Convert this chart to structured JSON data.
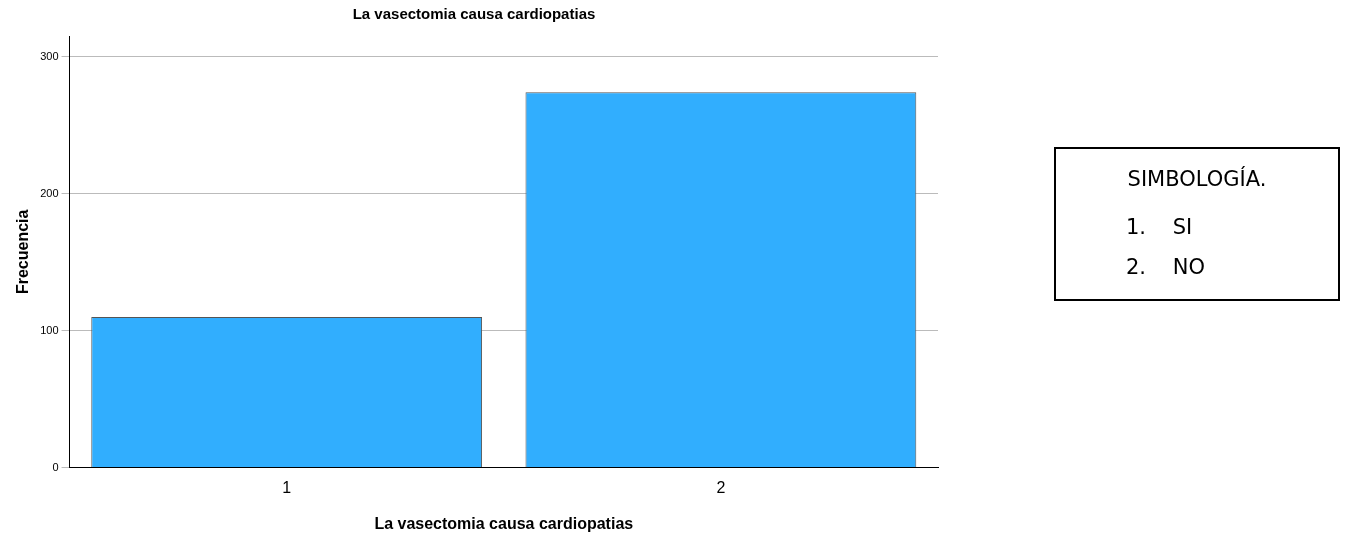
{
  "chart_data": {
    "type": "bar",
    "title": "La vasectomia causa cardiopatias",
    "xlabel": "La vasectomia causa cardiopatias",
    "ylabel": "Frecuencia",
    "categories": [
      "1",
      "2"
    ],
    "values": [
      110,
      274
    ],
    "color": "#31aefe",
    "ylim": [
      0,
      315
    ],
    "yticks": [
      0,
      100,
      200,
      300
    ],
    "grid": "y",
    "annotations": [
      "SIMBOLOGÍA.",
      "1.    SI",
      "2.    NO"
    ]
  }
}
